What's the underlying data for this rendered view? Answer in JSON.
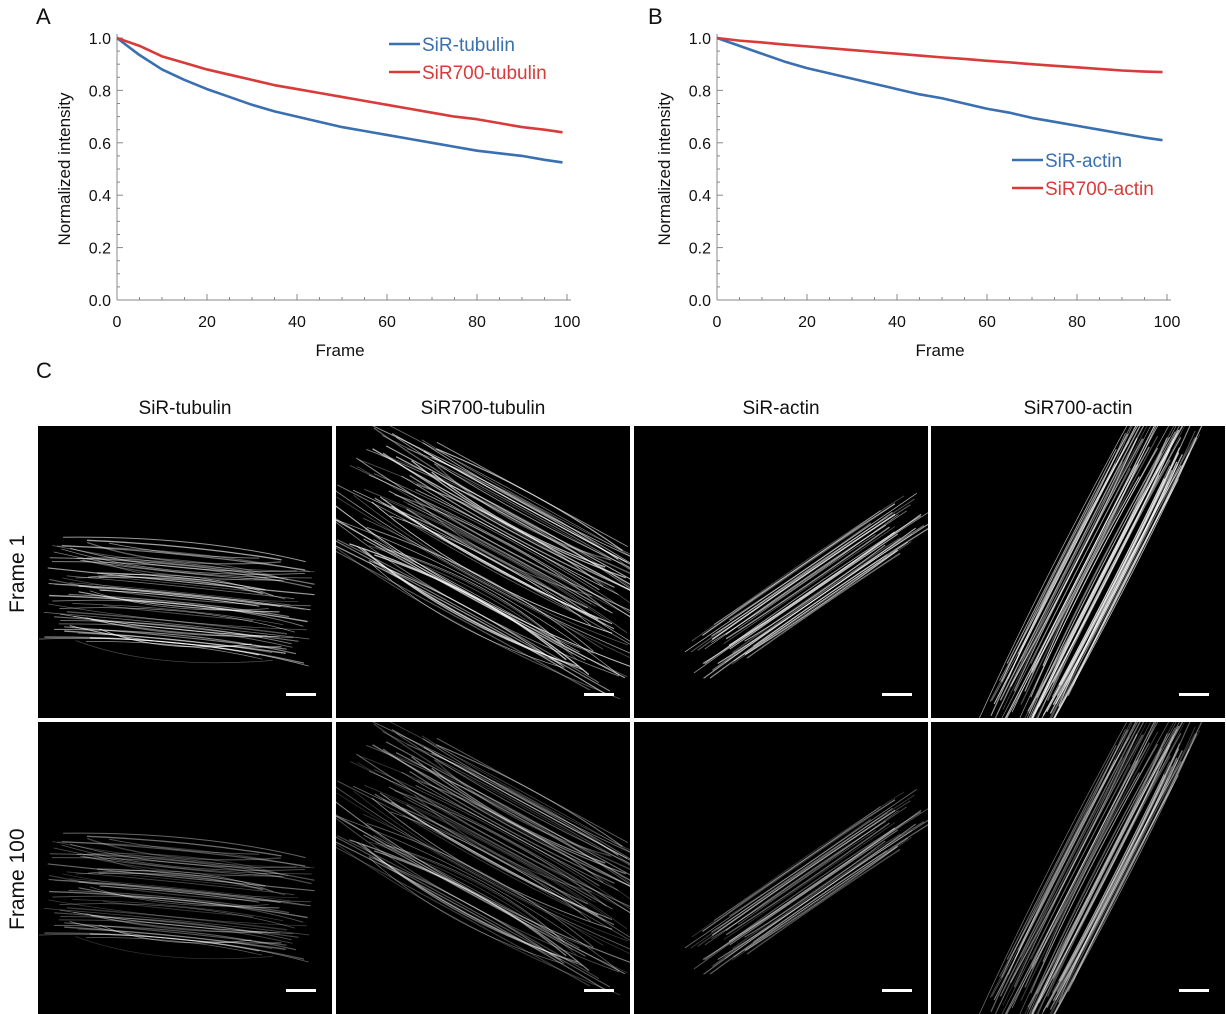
{
  "panels": {
    "a": {
      "letter": "A"
    },
    "b": {
      "letter": "B"
    },
    "c": {
      "letter": "C"
    }
  },
  "chart_data": [
    {
      "type": "line",
      "panel": "A",
      "xlabel": "Frame",
      "ylabel": "Normalized  intensity",
      "xlim": [
        0,
        100
      ],
      "ylim": [
        0,
        1.0
      ],
      "xticks": [
        0,
        20,
        40,
        60,
        80,
        100
      ],
      "yticks": [
        0.0,
        0.2,
        0.4,
        0.6,
        0.8,
        1.0
      ],
      "ytick_labels": [
        "0.0",
        "0.2",
        "0.4",
        "0.6",
        "0.8",
        "1.0"
      ],
      "legend_position": "top-right",
      "x": [
        0,
        5,
        10,
        15,
        20,
        25,
        30,
        35,
        40,
        45,
        50,
        55,
        60,
        65,
        70,
        75,
        80,
        85,
        90,
        95,
        99
      ],
      "series": [
        {
          "name": "SiR-tubulin",
          "color": "#3a6fb0",
          "values": [
            1.0,
            0.935,
            0.88,
            0.84,
            0.805,
            0.775,
            0.745,
            0.72,
            0.7,
            0.68,
            0.66,
            0.645,
            0.63,
            0.615,
            0.6,
            0.585,
            0.57,
            0.56,
            0.55,
            0.535,
            0.525
          ]
        },
        {
          "name": "SiR700-tubulin",
          "color": "#d93a3a",
          "values": [
            1.0,
            0.97,
            0.93,
            0.905,
            0.88,
            0.86,
            0.84,
            0.82,
            0.805,
            0.79,
            0.775,
            0.76,
            0.745,
            0.73,
            0.715,
            0.7,
            0.69,
            0.675,
            0.66,
            0.65,
            0.64
          ]
        }
      ]
    },
    {
      "type": "line",
      "panel": "B",
      "xlabel": "Frame",
      "ylabel": "Normalized  intensity",
      "xlim": [
        0,
        100
      ],
      "ylim": [
        0,
        1.0
      ],
      "xticks": [
        0,
        20,
        40,
        60,
        80,
        100
      ],
      "yticks": [
        0.0,
        0.2,
        0.4,
        0.6,
        0.8,
        1.0
      ],
      "ytick_labels": [
        "0.0",
        "0.2",
        "0.4",
        "0.6",
        "0.8",
        "1.0"
      ],
      "legend_position": "middle-right",
      "x": [
        0,
        5,
        10,
        15,
        20,
        25,
        30,
        35,
        40,
        45,
        50,
        55,
        60,
        65,
        70,
        75,
        80,
        85,
        90,
        95,
        99
      ],
      "series": [
        {
          "name": "SiR-actin",
          "color": "#3a6fb0",
          "values": [
            1.0,
            0.97,
            0.94,
            0.91,
            0.885,
            0.865,
            0.845,
            0.825,
            0.805,
            0.785,
            0.77,
            0.75,
            0.73,
            0.715,
            0.695,
            0.68,
            0.665,
            0.65,
            0.635,
            0.62,
            0.61
          ]
        },
        {
          "name": "SiR700-actin",
          "color": "#d93a3a",
          "values": [
            1.0,
            0.99,
            0.983,
            0.975,
            0.968,
            0.961,
            0.954,
            0.947,
            0.94,
            0.933,
            0.926,
            0.92,
            0.913,
            0.907,
            0.9,
            0.894,
            0.888,
            0.882,
            0.876,
            0.872,
            0.87
          ]
        }
      ]
    }
  ],
  "image_grid": {
    "columns": [
      "SiR-tubulin",
      "SiR700-tubulin",
      "SiR-actin",
      "SiR700-actin"
    ],
    "rows": [
      "Frame 1",
      "Frame 100"
    ]
  }
}
